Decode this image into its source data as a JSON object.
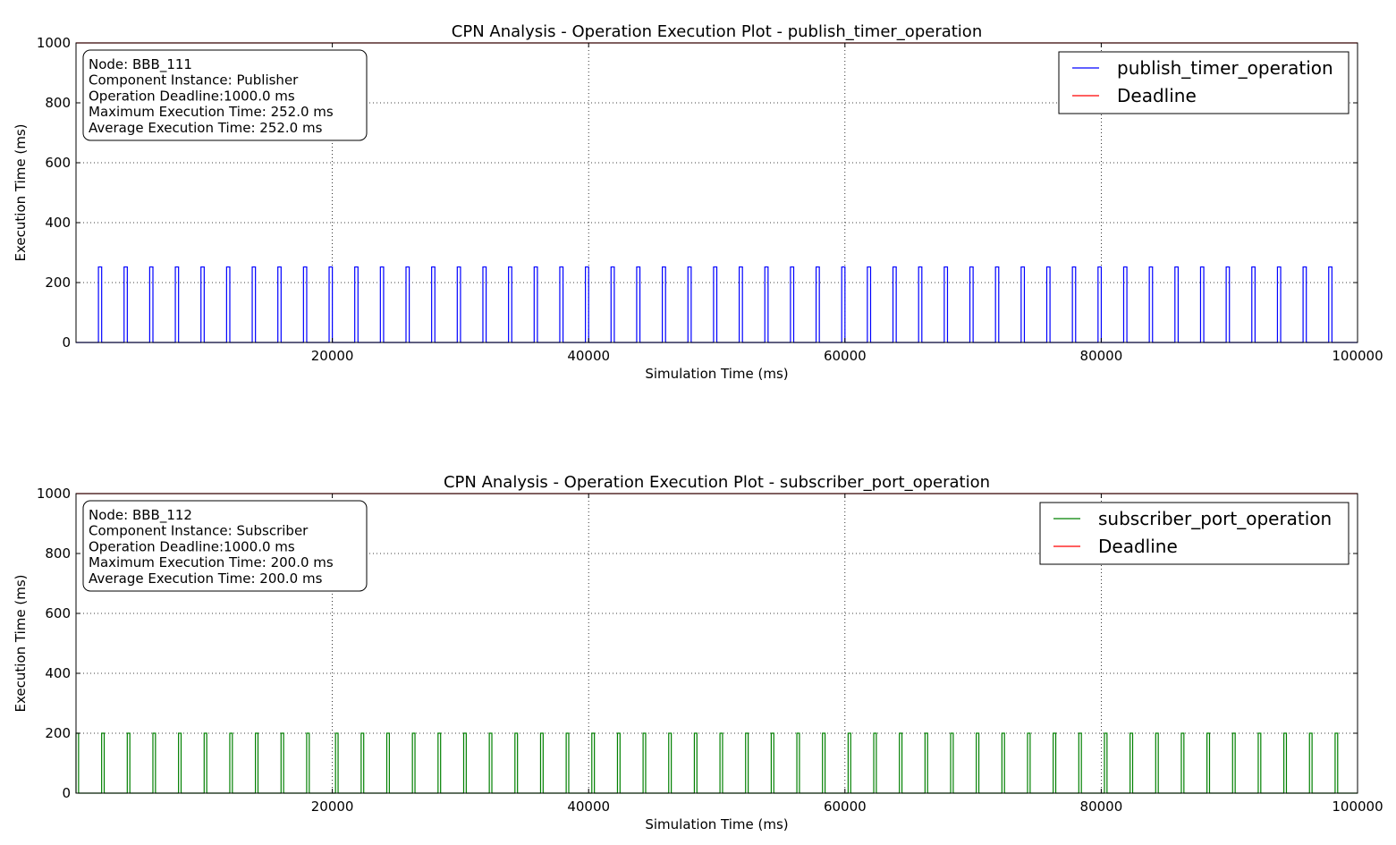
{
  "chart_data": [
    {
      "type": "line",
      "title": "CPN Analysis - Operation Execution Plot - publish_timer_operation",
      "xlabel": "Simulation Time (ms)",
      "ylabel": "Execution Time (ms)",
      "xlim": [
        0,
        100000
      ],
      "ylim": [
        0,
        1000
      ],
      "x_ticks": [
        "20000",
        "40000",
        "60000",
        "80000",
        "100000"
      ],
      "y_ticks": [
        "0",
        "200",
        "400",
        "600",
        "800",
        "1000"
      ],
      "grid": true,
      "legend_position": "top-right",
      "info_box": [
        "Node: BBB_111",
        "Component Instance: Publisher",
        "Operation Deadline:1000.0 ms",
        "Maximum Execution Time: 252.0 ms",
        "Average Execution Time: 252.0 ms"
      ],
      "series": [
        {
          "name": "publish_timer_operation",
          "color": "#0000ff",
          "pulse_height": 252,
          "pulses": [
            [
              1750,
              2002
            ],
            [
              3750,
              4002
            ],
            [
              5750,
              6002
            ],
            [
              7750,
              8002
            ],
            [
              9750,
              10002
            ],
            [
              11750,
              12002
            ],
            [
              13750,
              14002
            ],
            [
              15750,
              16002
            ],
            [
              17750,
              18002
            ],
            [
              19750,
              20002
            ],
            [
              21750,
              22002
            ],
            [
              23750,
              24002
            ],
            [
              25750,
              26002
            ],
            [
              27750,
              28002
            ],
            [
              29750,
              30002
            ],
            [
              31750,
              32002
            ],
            [
              33750,
              34002
            ],
            [
              35750,
              36002
            ],
            [
              37750,
              38002
            ],
            [
              39750,
              40002
            ],
            [
              41750,
              42002
            ],
            [
              43750,
              44002
            ],
            [
              45750,
              46002
            ],
            [
              47750,
              48002
            ],
            [
              49750,
              50002
            ],
            [
              51750,
              52002
            ],
            [
              53750,
              54002
            ],
            [
              55750,
              56002
            ],
            [
              57750,
              58002
            ],
            [
              59750,
              60002
            ],
            [
              61750,
              62002
            ],
            [
              63750,
              64002
            ],
            [
              65750,
              66002
            ],
            [
              67750,
              68002
            ],
            [
              69750,
              70002
            ],
            [
              71750,
              72002
            ],
            [
              73750,
              74002
            ],
            [
              75750,
              76002
            ],
            [
              77750,
              78002
            ],
            [
              79750,
              80002
            ],
            [
              81750,
              82002
            ],
            [
              83750,
              84002
            ],
            [
              85750,
              86002
            ],
            [
              87750,
              88002
            ],
            [
              89750,
              90002
            ],
            [
              91750,
              92002
            ],
            [
              93750,
              94002
            ],
            [
              95750,
              96002
            ],
            [
              97750,
              98002
            ]
          ]
        },
        {
          "name": "Deadline",
          "color": "#ff0000",
          "value": 1000
        }
      ]
    },
    {
      "type": "line",
      "title": "CPN Analysis - Operation Execution Plot - subscriber_port_operation",
      "xlabel": "Simulation Time (ms)",
      "ylabel": "Execution Time (ms)",
      "xlim": [
        0,
        100000
      ],
      "ylim": [
        0,
        1000
      ],
      "x_ticks": [
        "20000",
        "40000",
        "60000",
        "80000",
        "100000"
      ],
      "y_ticks": [
        "0",
        "200",
        "400",
        "600",
        "800",
        "1000"
      ],
      "grid": true,
      "legend_position": "top-right",
      "info_box": [
        "Node: BBB_112",
        "Component Instance: Subscriber",
        "Operation Deadline:1000.0 ms",
        "Maximum Execution Time: 200.0 ms",
        "Average Execution Time: 200.0 ms"
      ],
      "series": [
        {
          "name": "subscriber_port_operation",
          "color": "#008000",
          "pulse_height": 200,
          "pulses": [
            [
              0,
              200
            ],
            [
              2000,
              2200
            ],
            [
              4000,
              4200
            ],
            [
              6000,
              6200
            ],
            [
              8000,
              8200
            ],
            [
              10000,
              10200
            ],
            [
              12000,
              12200
            ],
            [
              14000,
              14200
            ],
            [
              16000,
              16200
            ],
            [
              18000,
              18200
            ],
            [
              20250,
              20450
            ],
            [
              22250,
              22450
            ],
            [
              24250,
              24450
            ],
            [
              26250,
              26450
            ],
            [
              28250,
              28450
            ],
            [
              30250,
              30450
            ],
            [
              32250,
              32450
            ],
            [
              34250,
              34450
            ],
            [
              36250,
              36450
            ],
            [
              38250,
              38450
            ],
            [
              40250,
              40450
            ],
            [
              42250,
              42450
            ],
            [
              44250,
              44450
            ],
            [
              46250,
              46450
            ],
            [
              48250,
              48450
            ],
            [
              50250,
              50450
            ],
            [
              52250,
              52450
            ],
            [
              54250,
              54450
            ],
            [
              56250,
              56450
            ],
            [
              58250,
              58450
            ],
            [
              60250,
              60450
            ],
            [
              62250,
              62450
            ],
            [
              64250,
              64450
            ],
            [
              66250,
              66450
            ],
            [
              68250,
              68450
            ],
            [
              70250,
              70450
            ],
            [
              72250,
              72450
            ],
            [
              74250,
              74450
            ],
            [
              76250,
              76450
            ],
            [
              78250,
              78450
            ],
            [
              80250,
              80450
            ],
            [
              82250,
              82450
            ],
            [
              84250,
              84450
            ],
            [
              86250,
              86450
            ],
            [
              88250,
              88450
            ],
            [
              90250,
              90450
            ],
            [
              92250,
              92450
            ],
            [
              94250,
              94450
            ],
            [
              96250,
              96450
            ],
            [
              98250,
              98450
            ]
          ]
        },
        {
          "name": "Deadline",
          "color": "#ff0000",
          "value": 1000
        }
      ]
    }
  ]
}
